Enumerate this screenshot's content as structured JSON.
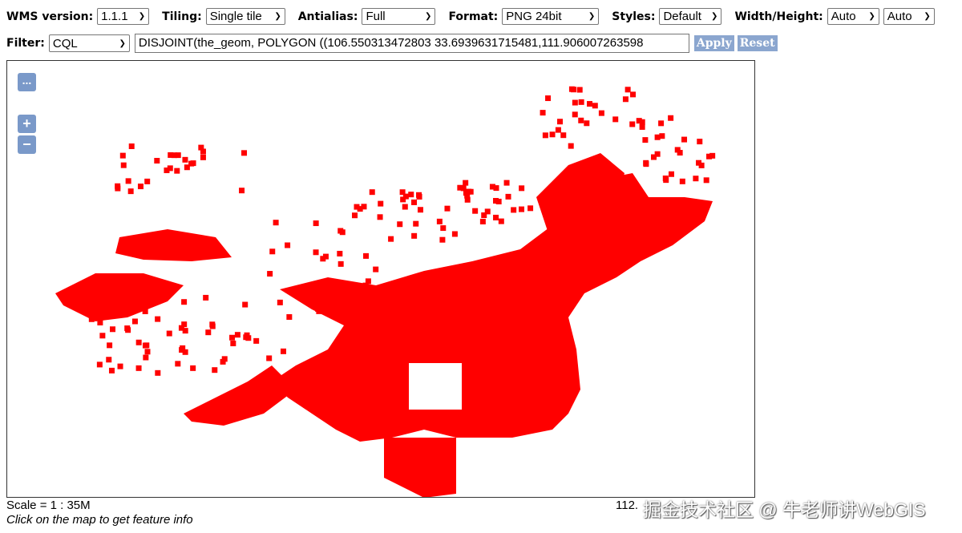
{
  "toolbar": {
    "wms_version": {
      "label": "WMS version:",
      "value": "1.1.1"
    },
    "tiling": {
      "label": "Tiling:",
      "value": "Single tile"
    },
    "antialias": {
      "label": "Antialias:",
      "value": "Full"
    },
    "format": {
      "label": "Format:",
      "value": "PNG 24bit"
    },
    "styles": {
      "label": "Styles:",
      "value": "Default"
    },
    "size": {
      "label": "Width/Height:",
      "width": "Auto",
      "height": "Auto"
    },
    "filter": {
      "label": "Filter:",
      "type": "CQL",
      "value": "DISJOINT(the_geom, POLYGON ((106.550313472803 33.6939631715481,111.906007263598"
    },
    "apply": "Apply",
    "reset": "Reset"
  },
  "map": {
    "feature_color": "#ff0000",
    "controls": {
      "layer_switcher": "...",
      "zoom_in": "+",
      "zoom_out": "−"
    }
  },
  "footer": {
    "scale": "Scale = 1 : 35M",
    "hint": "Click on the map to get feature info",
    "coords": "112.",
    "watermark": "掘金技术社区 @ 牛老师讲WebGIS"
  }
}
